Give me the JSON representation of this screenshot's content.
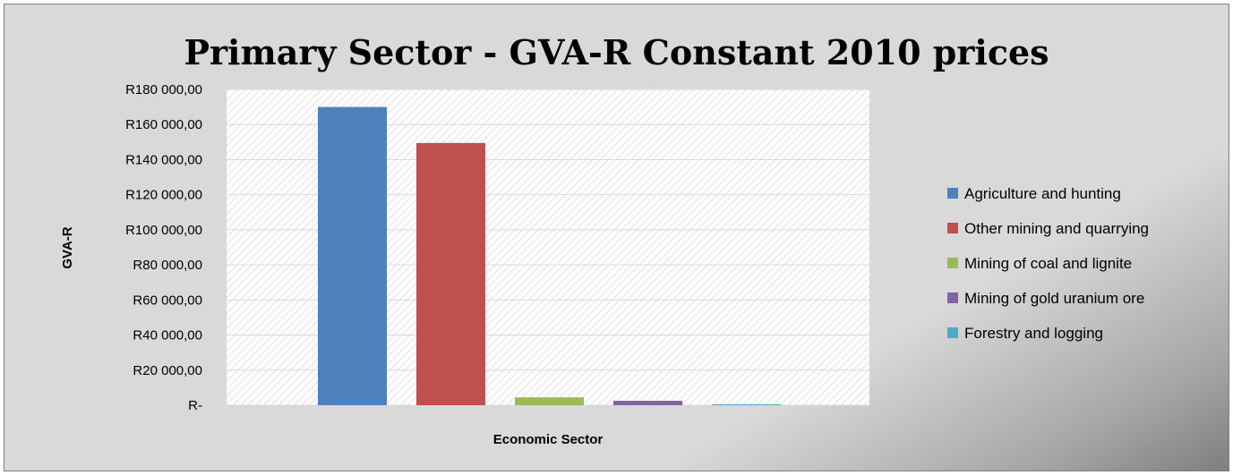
{
  "chart_data": {
    "type": "bar",
    "title": "Primary Sector - GVA-R Constant 2010 prices",
    "xlabel": "Economic  Sector",
    "ylabel": "GVA-R",
    "ylim": [
      0,
      180000
    ],
    "yticks": [
      0,
      20000,
      40000,
      60000,
      80000,
      100000,
      120000,
      140000,
      160000,
      180000
    ],
    "ytick_labels": [
      "R-",
      "R20 000,00",
      "R40 000,00",
      "R60 000,00",
      "R80 000,00",
      "R100 000,00",
      "R120 000,00",
      "R140 000,00",
      "R160 000,00",
      "R180 000,00"
    ],
    "grid": true,
    "legend_position": "right",
    "series": [
      {
        "name": "Agriculture and hunting",
        "value": 170000,
        "color": "#4f81bd"
      },
      {
        "name": "Other mining and quarrying",
        "value": 149500,
        "color": "#c0504d"
      },
      {
        "name": "Mining of coal and lignite",
        "value": 4500,
        "color": "#9bbb59"
      },
      {
        "name": "Mining of gold uranium ore",
        "value": 2500,
        "color": "#8064a2"
      },
      {
        "name": "Forestry and logging",
        "value": 400,
        "color": "#4bacc6"
      }
    ]
  }
}
